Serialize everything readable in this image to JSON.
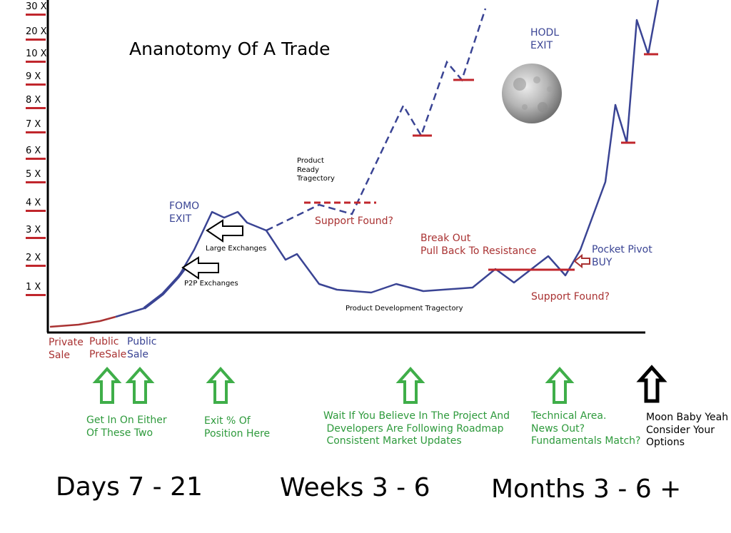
{
  "title": "Ananotomy Of A Trade",
  "y_axis_labels": [
    "30 X",
    "20 X",
    "10 X",
    "9 X",
    "8 X",
    "7 X",
    "6 X",
    "5 X",
    "4 X",
    "3 X",
    "2 X",
    "1 X"
  ],
  "stages": {
    "private_sale": "Private\nSale",
    "public_presale": "Public\nPreSale",
    "public_sale": "Public\nSale"
  },
  "annotations": {
    "fomo_exit": "FOMO\nEXIT",
    "large_exchanges": "Large Exchanges",
    "p2p_exchanges": "P2P Exchanges",
    "product_ready": "Product\nReady\nTragectory",
    "support_found_1": "Support Found?",
    "product_development": "Product Development Tragectory",
    "break_out": "Break Out\nPull Back To Resistance",
    "pocket_pivot": "Pocket Pivot\nBUY",
    "support_found_2": "Support Found?",
    "hodl_exit": "HODL\nEXIT"
  },
  "actions": {
    "get_in": "Get In On Either\nOf These Two",
    "exit_position": "Exit % Of\nPosition Here",
    "wait": "Wait If You Believe In The Project And\n Developers Are Following Roadmap\n Consistent Market Updates",
    "technical_area": "Technical Area.\nNews Out?\nFundamentals Match?",
    "moon": "Moon Baby Yeah\nConsider Your\nOptions"
  },
  "timeline": {
    "days": "Days 7 - 21",
    "weeks": "Weeks 3 - 6",
    "months": "Months 3 - 6 +"
  },
  "colors": {
    "line_blue": "#3a4494",
    "line_red": "#a93232",
    "arrow_green": "#3fae49",
    "support_red": "#c0262c",
    "text_green": "#2e9a3c"
  },
  "icons": {
    "moon": "moon-icon",
    "up_arrow": "up-arrow-icon",
    "left_arrow": "left-arrow-icon"
  }
}
